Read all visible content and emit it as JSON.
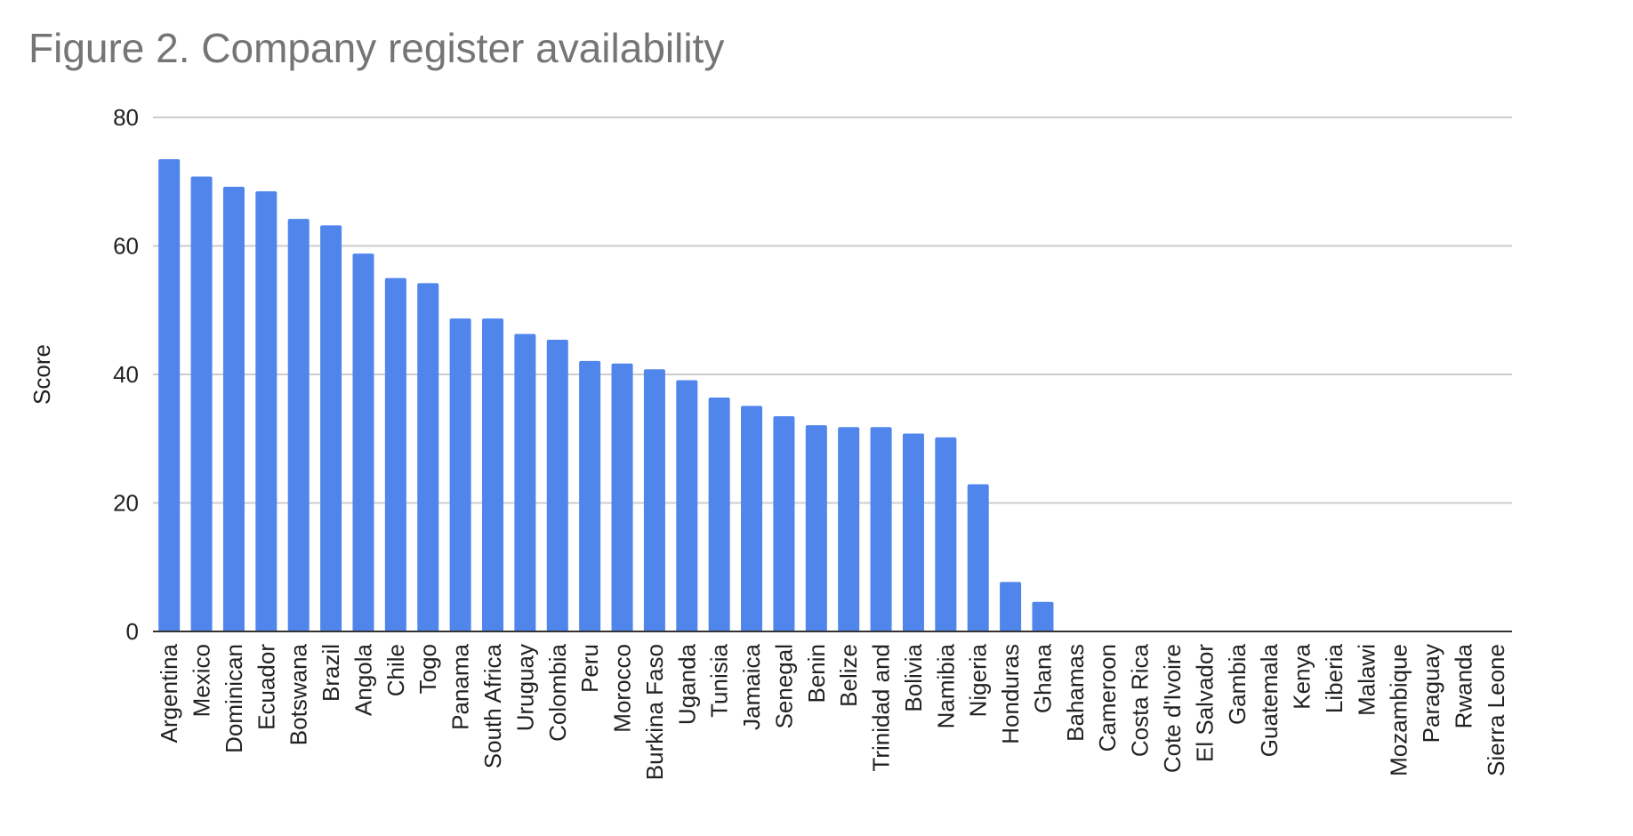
{
  "chart_data": {
    "type": "bar",
    "title": "Figure 2. Company register availability",
    "xlabel": "",
    "ylabel": "Score",
    "ylim": [
      0,
      80
    ],
    "yticks": [
      0,
      20,
      40,
      60,
      80
    ],
    "grid": true,
    "legend": "none",
    "colors": {
      "bar": "#5085EC",
      "title": "#757575",
      "text": "#222222",
      "grid": "#CCCCCC",
      "axis": "#333333"
    },
    "categories": [
      "Argentina",
      "Mexico",
      "Dominican",
      "Ecuador",
      "Botswana",
      "Brazil",
      "Angola",
      "Chile",
      "Togo",
      "Panama",
      "South Africa",
      "Uruguay",
      "Colombia",
      "Peru",
      "Morocco",
      "Burkina Faso",
      "Uganda",
      "Tunisia",
      "Jamaica",
      "Senegal",
      "Benin",
      "Belize",
      "Trinidad and",
      "Bolivia",
      "Namibia",
      "Nigeria",
      "Honduras",
      "Ghana",
      "Bahamas",
      "Cameroon",
      "Costa Rica",
      "Cote d'Ivoire",
      "El Salvador",
      "Gambia",
      "Guatemala",
      "Kenya",
      "Liberia",
      "Malawi",
      "Mozambique",
      "Paraguay",
      "Rwanda",
      "Sierra Leone"
    ],
    "values": [
      73.5,
      70.8,
      69.2,
      68.5,
      64.2,
      63.2,
      58.8,
      55.0,
      54.2,
      48.7,
      48.7,
      46.3,
      45.4,
      42.1,
      41.7,
      40.8,
      39.1,
      36.4,
      35.1,
      33.5,
      32.1,
      31.8,
      31.8,
      30.8,
      30.2,
      22.9,
      7.7,
      4.6,
      0,
      0,
      0,
      0,
      0,
      0,
      0,
      0,
      0,
      0,
      0,
      0,
      0,
      0
    ]
  }
}
